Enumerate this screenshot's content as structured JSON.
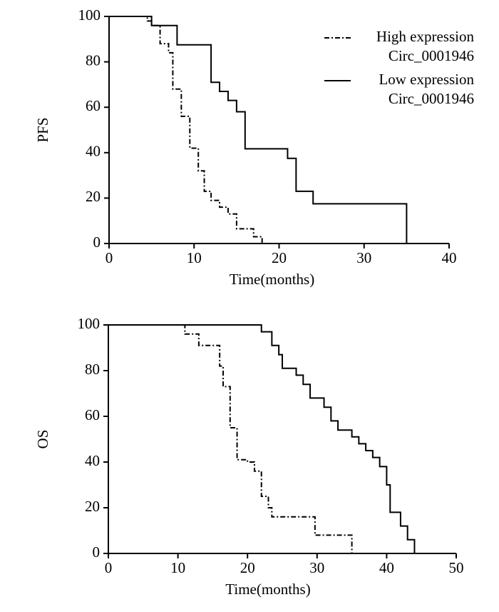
{
  "chart_data": [
    {
      "type": "step",
      "xlabel": "Time(months)",
      "ylabel": "PFS",
      "xlim": [
        0,
        40
      ],
      "xticks": [
        0,
        10,
        20,
        30,
        40
      ],
      "ylim": [
        0,
        100
      ],
      "yticks": [
        0,
        20,
        40,
        60,
        80,
        100
      ],
      "legend": "upper right",
      "series": [
        {
          "name": "High expression\nCirc_0001946",
          "color": "#000000",
          "dash": true,
          "x": [
            0,
            4.5,
            5,
            6,
            7,
            7.5,
            8.5,
            9.5,
            10.5,
            11.2,
            12,
            13,
            14,
            15,
            17,
            18
          ],
          "values": [
            100,
            98,
            96,
            88,
            84,
            68,
            56,
            42,
            32,
            23,
            19,
            16,
            13,
            6.5,
            3,
            0
          ]
        },
        {
          "name": "Low expression\nCirc_0001946",
          "color": "#000000",
          "dash": false,
          "x": [
            0,
            5,
            8,
            12,
            13,
            14,
            15,
            16,
            21,
            22,
            24,
            35
          ],
          "values": [
            100,
            96,
            87.5,
            71,
            67,
            63,
            58,
            41.7,
            37.5,
            23,
            17.5,
            0
          ]
        }
      ]
    },
    {
      "type": "step",
      "xlabel": "Time(months)",
      "ylabel": "OS",
      "xlim": [
        0,
        50
      ],
      "xticks": [
        0,
        10,
        20,
        30,
        40,
        50
      ],
      "ylim": [
        0,
        100
      ],
      "yticks": [
        0,
        20,
        40,
        60,
        80,
        100
      ],
      "series": [
        {
          "color": "#000000",
          "dash": true,
          "x": [
            0,
            11,
            13,
            16,
            16.5,
            17.5,
            18.5,
            20,
            21,
            22,
            23,
            23.5,
            29.7,
            35
          ],
          "values": [
            100,
            96,
            91,
            82,
            73,
            55,
            41,
            40,
            36,
            25,
            20,
            16,
            8,
            0
          ]
        },
        {
          "color": "#000000",
          "dash": false,
          "x": [
            0,
            22,
            23.5,
            24.5,
            25,
            27,
            28,
            29,
            31,
            32,
            33,
            35,
            36,
            37,
            38,
            39,
            40,
            40.5,
            42,
            43,
            44
          ],
          "values": [
            100,
            97,
            91,
            87,
            81,
            78,
            74,
            68,
            64,
            58,
            54,
            51,
            48,
            45,
            42,
            38,
            30,
            18,
            12,
            6,
            0
          ]
        }
      ]
    }
  ]
}
